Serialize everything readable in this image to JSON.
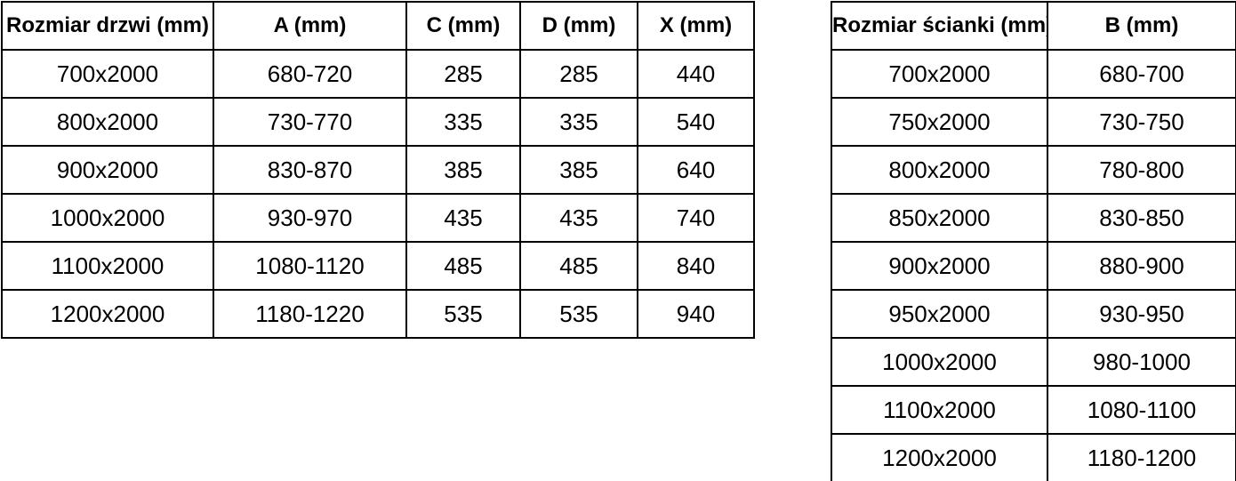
{
  "doors_table": {
    "headers": [
      "Rozmiar drzwi (mm)",
      "A (mm)",
      "C (mm)",
      "D (mm)",
      "X (mm)"
    ],
    "rows": [
      [
        "700x2000",
        "680-720",
        "285",
        "285",
        "440"
      ],
      [
        "800x2000",
        "730-770",
        "335",
        "335",
        "540"
      ],
      [
        "900x2000",
        "830-870",
        "385",
        "385",
        "640"
      ],
      [
        "1000x2000",
        "930-970",
        "435",
        "435",
        "740"
      ],
      [
        "1100x2000",
        "1080-1120",
        "485",
        "485",
        "840"
      ],
      [
        "1200x2000",
        "1180-1220",
        "535",
        "535",
        "940"
      ]
    ]
  },
  "wall_table": {
    "headers": [
      "Rozmiar ścianki (mm)",
      "B (mm)"
    ],
    "rows": [
      [
        "700x2000",
        "680-700"
      ],
      [
        "750x2000",
        "730-750"
      ],
      [
        "800x2000",
        "780-800"
      ],
      [
        "850x2000",
        "830-850"
      ],
      [
        "900x2000",
        "880-900"
      ],
      [
        "950x2000",
        "930-950"
      ],
      [
        "1000x2000",
        "980-1000"
      ],
      [
        "1100x2000",
        "1080-1100"
      ],
      [
        "1200x2000",
        "1180-1200"
      ]
    ]
  },
  "colors": {
    "border": "#000000",
    "text": "#000000",
    "background": "#ffffff"
  }
}
